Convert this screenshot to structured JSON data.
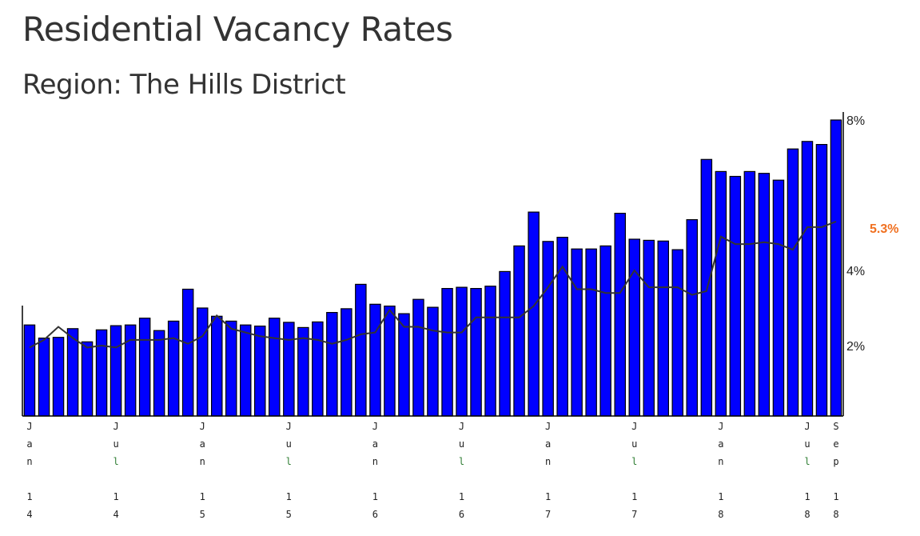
{
  "title": "Residential Vacancy Rates",
  "subtitle": "Region: The Hills District",
  "chart_data": {
    "type": "bar",
    "title": "Residential Vacancy Rates",
    "subtitle": "Region: The Hills District",
    "categories": [
      "Jan 14",
      "Feb 14",
      "Mar 14",
      "Apr 14",
      "May 14",
      "Jun 14",
      "Jul 14",
      "Aug 14",
      "Sep 14",
      "Oct 14",
      "Nov 14",
      "Dec 14",
      "Jan 15",
      "Feb 15",
      "Mar 15",
      "Apr 15",
      "May 15",
      "Jun 15",
      "Jul 15",
      "Aug 15",
      "Sep 15",
      "Oct 15",
      "Nov 15",
      "Dec 15",
      "Jan 16",
      "Feb 16",
      "Mar 16",
      "Apr 16",
      "May 16",
      "Jun 16",
      "Jul 16",
      "Aug 16",
      "Sep 16",
      "Oct 16",
      "Nov 16",
      "Dec 16",
      "Jan 17",
      "Feb 17",
      "Mar 17",
      "Apr 17",
      "May 17",
      "Jun 17",
      "Jul 17",
      "Aug 17",
      "Sep 17",
      "Oct 17",
      "Nov 17",
      "Dec 17",
      "Jan 18",
      "Feb 18",
      "Mar 18",
      "Apr 18",
      "May 18",
      "Jun 18",
      "Jul 18",
      "Aug 18",
      "Sep 18"
    ],
    "series": [
      {
        "color": "#0000ff",
        "values": [
          2.55,
          2.2,
          2.22,
          2.45,
          2.1,
          2.42,
          2.53,
          2.55,
          2.73,
          2.4,
          2.65,
          3.5,
          3.0,
          2.78,
          2.65,
          2.55,
          2.52,
          2.73,
          2.62,
          2.48,
          2.63,
          2.88,
          2.98,
          3.63,
          3.1,
          3.05,
          2.85,
          3.23,
          3.02,
          3.52,
          3.55,
          3.52,
          3.58,
          3.97,
          4.65,
          5.55,
          4.77,
          4.88,
          4.57,
          4.57,
          4.65,
          5.52,
          4.83,
          4.8,
          4.78,
          4.55,
          5.35,
          6.95,
          6.63,
          6.5,
          6.63,
          6.58,
          6.4,
          7.23,
          7.43,
          7.35,
          8.0
        ]
      },
      {
        "color": "#333333",
        "type": "line",
        "values": [
          1.95,
          2.15,
          2.5,
          2.2,
          1.95,
          2.0,
          1.95,
          2.15,
          2.15,
          2.15,
          2.2,
          2.05,
          2.25,
          2.8,
          2.45,
          2.35,
          2.25,
          2.2,
          2.15,
          2.2,
          2.15,
          2.05,
          2.15,
          2.3,
          2.35,
          2.95,
          2.5,
          2.5,
          2.4,
          2.35,
          2.35,
          2.75,
          2.75,
          2.75,
          2.75,
          3.05,
          3.55,
          4.1,
          3.5,
          3.5,
          3.4,
          3.4,
          4.0,
          3.55,
          3.55,
          3.55,
          3.35,
          3.45,
          4.9,
          4.7,
          4.7,
          4.75,
          4.7,
          4.55,
          5.15,
          5.15,
          5.3
        ]
      }
    ],
    "xtick_labels": [
      "Jan 14",
      "Jul 14",
      "Jan 15",
      "Jul 15",
      "Jan 16",
      "Jul 16",
      "Jan 17",
      "Jul 17",
      "Jan 18",
      "Jul 18",
      "Sep 18"
    ],
    "y_tick_labels": [
      "2%",
      "4%",
      "8%"
    ],
    "current_value_label": "5.3%",
    "current_value_color": "#f07020"
  }
}
